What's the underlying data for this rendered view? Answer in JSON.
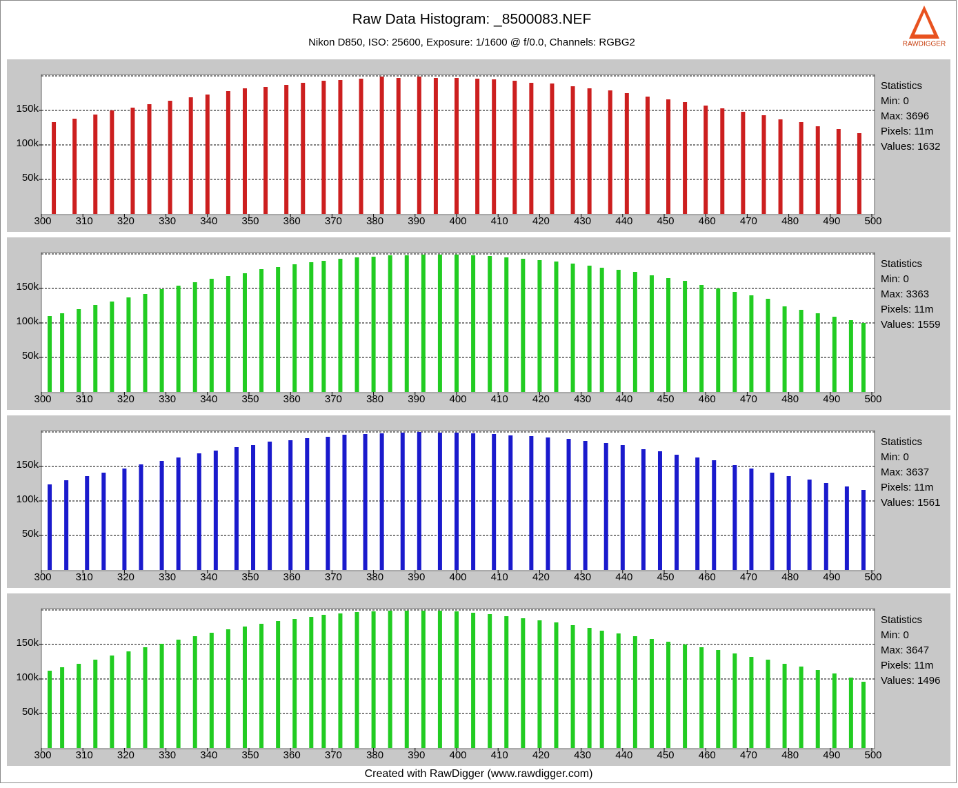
{
  "header": {
    "title": "Raw Data Histogram: _8500083.NEF",
    "subtitle": "Nikon D850, ISO: 25600, Exposure: 1/1600 @ f/0.0, Channels: RGBG2",
    "logo": "RAWDIGGER"
  },
  "footer": "Created with RawDigger (www.rawdigger.com)",
  "chart_data": [
    {
      "type": "bar",
      "color": "#cc1f1f",
      "grid": true,
      "xlim": [
        300,
        500
      ],
      "xticks": [
        300,
        310,
        320,
        330,
        340,
        350,
        360,
        370,
        380,
        390,
        400,
        410,
        420,
        430,
        440,
        450,
        460,
        470,
        480,
        490,
        500
      ],
      "ylim": [
        0,
        200000
      ],
      "yticks": [
        {
          "value": 50000,
          "label": "50k"
        },
        {
          "value": 100000,
          "label": "100k"
        },
        {
          "value": 150000,
          "label": "150k"
        }
      ],
      "x": [
        303,
        308,
        313,
        317,
        322,
        326,
        331,
        336,
        340,
        345,
        349,
        354,
        359,
        363,
        368,
        372,
        377,
        382,
        386,
        391,
        395,
        400,
        405,
        409,
        414,
        418,
        423,
        428,
        432,
        437,
        441,
        446,
        451,
        455,
        460,
        464,
        469,
        474,
        478,
        483,
        487,
        492,
        497
      ],
      "values": [
        133000,
        138000,
        144000,
        150000,
        154000,
        159000,
        164000,
        169000,
        173000,
        178000,
        182000,
        184000,
        187000,
        190000,
        193000,
        194000,
        196000,
        199000,
        197000,
        199000,
        197000,
        197000,
        196000,
        195000,
        193000,
        190000,
        189000,
        185000,
        182000,
        179000,
        175000,
        170000,
        166000,
        162000,
        157000,
        153000,
        148000,
        143000,
        137000,
        133000,
        127000,
        123000,
        117000
      ],
      "stats": [
        "Statistics",
        "Min: 0",
        "Max: 3696",
        "Pixels: 11m",
        "Values: 1632"
      ]
    },
    {
      "type": "bar",
      "color": "#22cc22",
      "grid": true,
      "xlim": [
        300,
        500
      ],
      "xticks": [
        300,
        310,
        320,
        330,
        340,
        350,
        360,
        370,
        380,
        390,
        400,
        410,
        420,
        430,
        440,
        450,
        460,
        470,
        480,
        490,
        500
      ],
      "ylim": [
        0,
        200000
      ],
      "yticks": [
        {
          "value": 50000,
          "label": "50k"
        },
        {
          "value": 100000,
          "label": "100k"
        },
        {
          "value": 150000,
          "label": "150k"
        }
      ],
      "x": [
        302,
        305,
        309,
        313,
        317,
        321,
        325,
        329,
        333,
        337,
        341,
        345,
        349,
        353,
        357,
        361,
        365,
        368,
        372,
        376,
        380,
        384,
        388,
        392,
        396,
        400,
        404,
        408,
        412,
        416,
        420,
        424,
        428,
        432,
        435,
        439,
        443,
        447,
        451,
        455,
        459,
        463,
        467,
        471,
        475,
        479,
        483,
        487,
        491,
        495,
        498
      ],
      "values": [
        110000,
        114000,
        120000,
        126000,
        131000,
        137000,
        142000,
        149000,
        154000,
        159000,
        164000,
        168000,
        172000,
        178000,
        181000,
        185000,
        188000,
        190000,
        193000,
        195000,
        196000,
        198000,
        198000,
        199000,
        199000,
        199000,
        198000,
        197000,
        195000,
        193000,
        191000,
        189000,
        186000,
        183000,
        180000,
        177000,
        174000,
        169000,
        165000,
        161000,
        155000,
        150000,
        145000,
        140000,
        135000,
        124000,
        119000,
        114000,
        109000,
        104000,
        100000
      ],
      "stats": [
        "Statistics",
        "Min: 0",
        "Max: 3363",
        "Pixels: 11m",
        "Values: 1559"
      ]
    },
    {
      "type": "bar",
      "color": "#1a1acc",
      "grid": true,
      "xlim": [
        300,
        500
      ],
      "xticks": [
        300,
        310,
        320,
        330,
        340,
        350,
        360,
        370,
        380,
        390,
        400,
        410,
        420,
        430,
        440,
        450,
        460,
        470,
        480,
        490,
        500
      ],
      "ylim": [
        0,
        200000
      ],
      "yticks": [
        {
          "value": 50000,
          "label": "50k"
        },
        {
          "value": 100000,
          "label": "100k"
        },
        {
          "value": 150000,
          "label": "150k"
        }
      ],
      "x": [
        302,
        306,
        311,
        315,
        320,
        324,
        329,
        333,
        338,
        342,
        347,
        351,
        355,
        360,
        364,
        369,
        373,
        378,
        382,
        387,
        391,
        396,
        400,
        404,
        409,
        413,
        418,
        422,
        427,
        431,
        436,
        440,
        445,
        449,
        453,
        458,
        462,
        467,
        471,
        476,
        480,
        485,
        489,
        494,
        498
      ],
      "values": [
        124000,
        130000,
        136000,
        141000,
        147000,
        153000,
        158000,
        163000,
        169000,
        173000,
        178000,
        181000,
        186000,
        188000,
        191000,
        193000,
        196000,
        197000,
        198000,
        199000,
        200000,
        199000,
        199000,
        198000,
        197000,
        195000,
        194000,
        192000,
        190000,
        187000,
        184000,
        181000,
        175000,
        172000,
        167000,
        163000,
        159000,
        152000,
        147000,
        141000,
        136000,
        131000,
        126000,
        121000,
        116000
      ],
      "stats": [
        "Statistics",
        "Min: 0",
        "Max: 3637",
        "Pixels: 11m",
        "Values: 1561"
      ]
    },
    {
      "type": "bar",
      "color": "#22cc22",
      "grid": true,
      "xlim": [
        300,
        500
      ],
      "xticks": [
        300,
        310,
        320,
        330,
        340,
        350,
        360,
        370,
        380,
        390,
        400,
        410,
        420,
        430,
        440,
        450,
        460,
        470,
        480,
        490,
        500
      ],
      "ylim": [
        0,
        200000
      ],
      "yticks": [
        {
          "value": 50000,
          "label": "50k"
        },
        {
          "value": 100000,
          "label": "100k"
        },
        {
          "value": 150000,
          "label": "150k"
        }
      ],
      "x": [
        302,
        305,
        309,
        313,
        317,
        321,
        325,
        329,
        333,
        337,
        341,
        345,
        349,
        353,
        357,
        361,
        365,
        368,
        372,
        376,
        380,
        384,
        388,
        392,
        396,
        400,
        404,
        408,
        412,
        416,
        420,
        424,
        428,
        432,
        435,
        439,
        443,
        447,
        451,
        455,
        459,
        463,
        467,
        471,
        475,
        479,
        483,
        487,
        491,
        495,
        498
      ],
      "values": [
        112000,
        117000,
        122000,
        128000,
        134000,
        140000,
        146000,
        151000,
        157000,
        162000,
        167000,
        172000,
        176000,
        180000,
        184000,
        187000,
        190000,
        193000,
        195000,
        197000,
        198000,
        199000,
        199000,
        199000,
        199000,
        198000,
        196000,
        194000,
        191000,
        188000,
        185000,
        182000,
        178000,
        174000,
        170000,
        166000,
        162000,
        158000,
        154000,
        150000,
        146000,
        142000,
        137000,
        132000,
        128000,
        122000,
        118000,
        113000,
        108000,
        102000,
        96000
      ],
      "stats": [
        "Statistics",
        "Min: 0",
        "Max: 3647",
        "Pixels: 11m",
        "Values: 1496"
      ]
    }
  ]
}
